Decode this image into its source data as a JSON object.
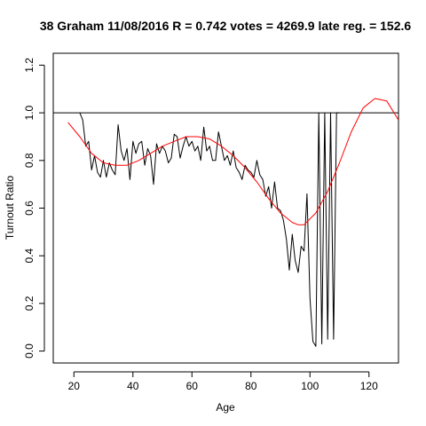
{
  "chart_data": {
    "type": "line",
    "title": "38 Graham 11/08/2016 R = 0.742 votes = 4269.9 late reg. = 152.6",
    "xlabel": "Age",
    "ylabel": "Turnout Ratio",
    "xlim": [
      13,
      130
    ],
    "ylim": [
      -0.05,
      1.25
    ],
    "xticks": [
      20,
      40,
      60,
      80,
      100,
      120
    ],
    "yticks": [
      0.0,
      0.2,
      0.4,
      0.6,
      0.8,
      1.0,
      1.2
    ],
    "xtick_labels": [
      "20",
      "40",
      "60",
      "80",
      "100",
      "120"
    ],
    "ytick_labels": [
      "0.0",
      "0.2",
      "0.4",
      "0.6",
      "0.8",
      "1.0",
      "1.2"
    ],
    "reference_line": {
      "y": 1.0,
      "color": "#000000"
    },
    "series": [
      {
        "color": "#000000",
        "x": [
          22,
          23,
          24,
          25,
          26,
          27,
          28,
          29,
          30,
          31,
          32,
          33,
          34,
          35,
          36,
          37,
          38,
          39,
          40,
          41,
          42,
          43,
          44,
          45,
          46,
          47,
          48,
          49,
          50,
          51,
          52,
          53,
          54,
          55,
          56,
          57,
          58,
          59,
          60,
          61,
          62,
          63,
          64,
          65,
          66,
          67,
          68,
          69,
          70,
          71,
          72,
          73,
          74,
          75,
          76,
          77,
          78,
          79,
          80,
          81,
          82,
          83,
          84,
          85,
          86,
          87,
          88,
          89,
          90,
          91,
          92,
          93,
          94,
          95,
          96,
          97,
          98,
          99,
          100,
          101,
          102,
          103,
          104,
          105,
          106,
          107,
          108,
          109,
          110
        ],
        "y": [
          1.0,
          0.97,
          0.86,
          0.88,
          0.76,
          0.82,
          0.75,
          0.73,
          0.8,
          0.73,
          0.79,
          0.76,
          0.74,
          0.95,
          0.84,
          0.8,
          0.85,
          0.72,
          0.88,
          0.83,
          0.87,
          0.88,
          0.78,
          0.85,
          0.82,
          0.7,
          0.87,
          0.83,
          0.86,
          0.84,
          0.79,
          0.81,
          0.91,
          0.9,
          0.81,
          0.86,
          0.9,
          0.86,
          0.88,
          0.84,
          0.86,
          0.8,
          0.94,
          0.84,
          0.86,
          0.8,
          0.8,
          0.92,
          0.86,
          0.8,
          0.82,
          0.78,
          0.84,
          0.77,
          0.75,
          0.72,
          0.78,
          0.76,
          0.75,
          0.73,
          0.8,
          0.74,
          0.72,
          0.65,
          0.69,
          0.6,
          0.71,
          0.6,
          0.59,
          0.55,
          0.47,
          0.34,
          0.49,
          0.38,
          0.33,
          0.44,
          0.42,
          0.66,
          0.22,
          0.04,
          0.02,
          1.0,
          0.03,
          1.0,
          0.05,
          1.0,
          0.05,
          1.0,
          1.0
        ]
      },
      {
        "color": "#ff0000",
        "x": [
          18,
          22,
          26,
          30,
          34,
          38,
          42,
          46,
          50,
          54,
          58,
          62,
          66,
          70,
          74,
          78,
          82,
          86,
          90,
          94,
          96,
          98,
          102,
          106,
          110,
          114,
          118,
          122,
          126,
          130
        ],
        "y": [
          0.96,
          0.9,
          0.83,
          0.79,
          0.78,
          0.78,
          0.8,
          0.83,
          0.86,
          0.88,
          0.9,
          0.9,
          0.89,
          0.86,
          0.82,
          0.77,
          0.71,
          0.64,
          0.58,
          0.54,
          0.53,
          0.53,
          0.58,
          0.67,
          0.79,
          0.92,
          1.02,
          1.06,
          1.05,
          0.97
        ]
      }
    ]
  }
}
